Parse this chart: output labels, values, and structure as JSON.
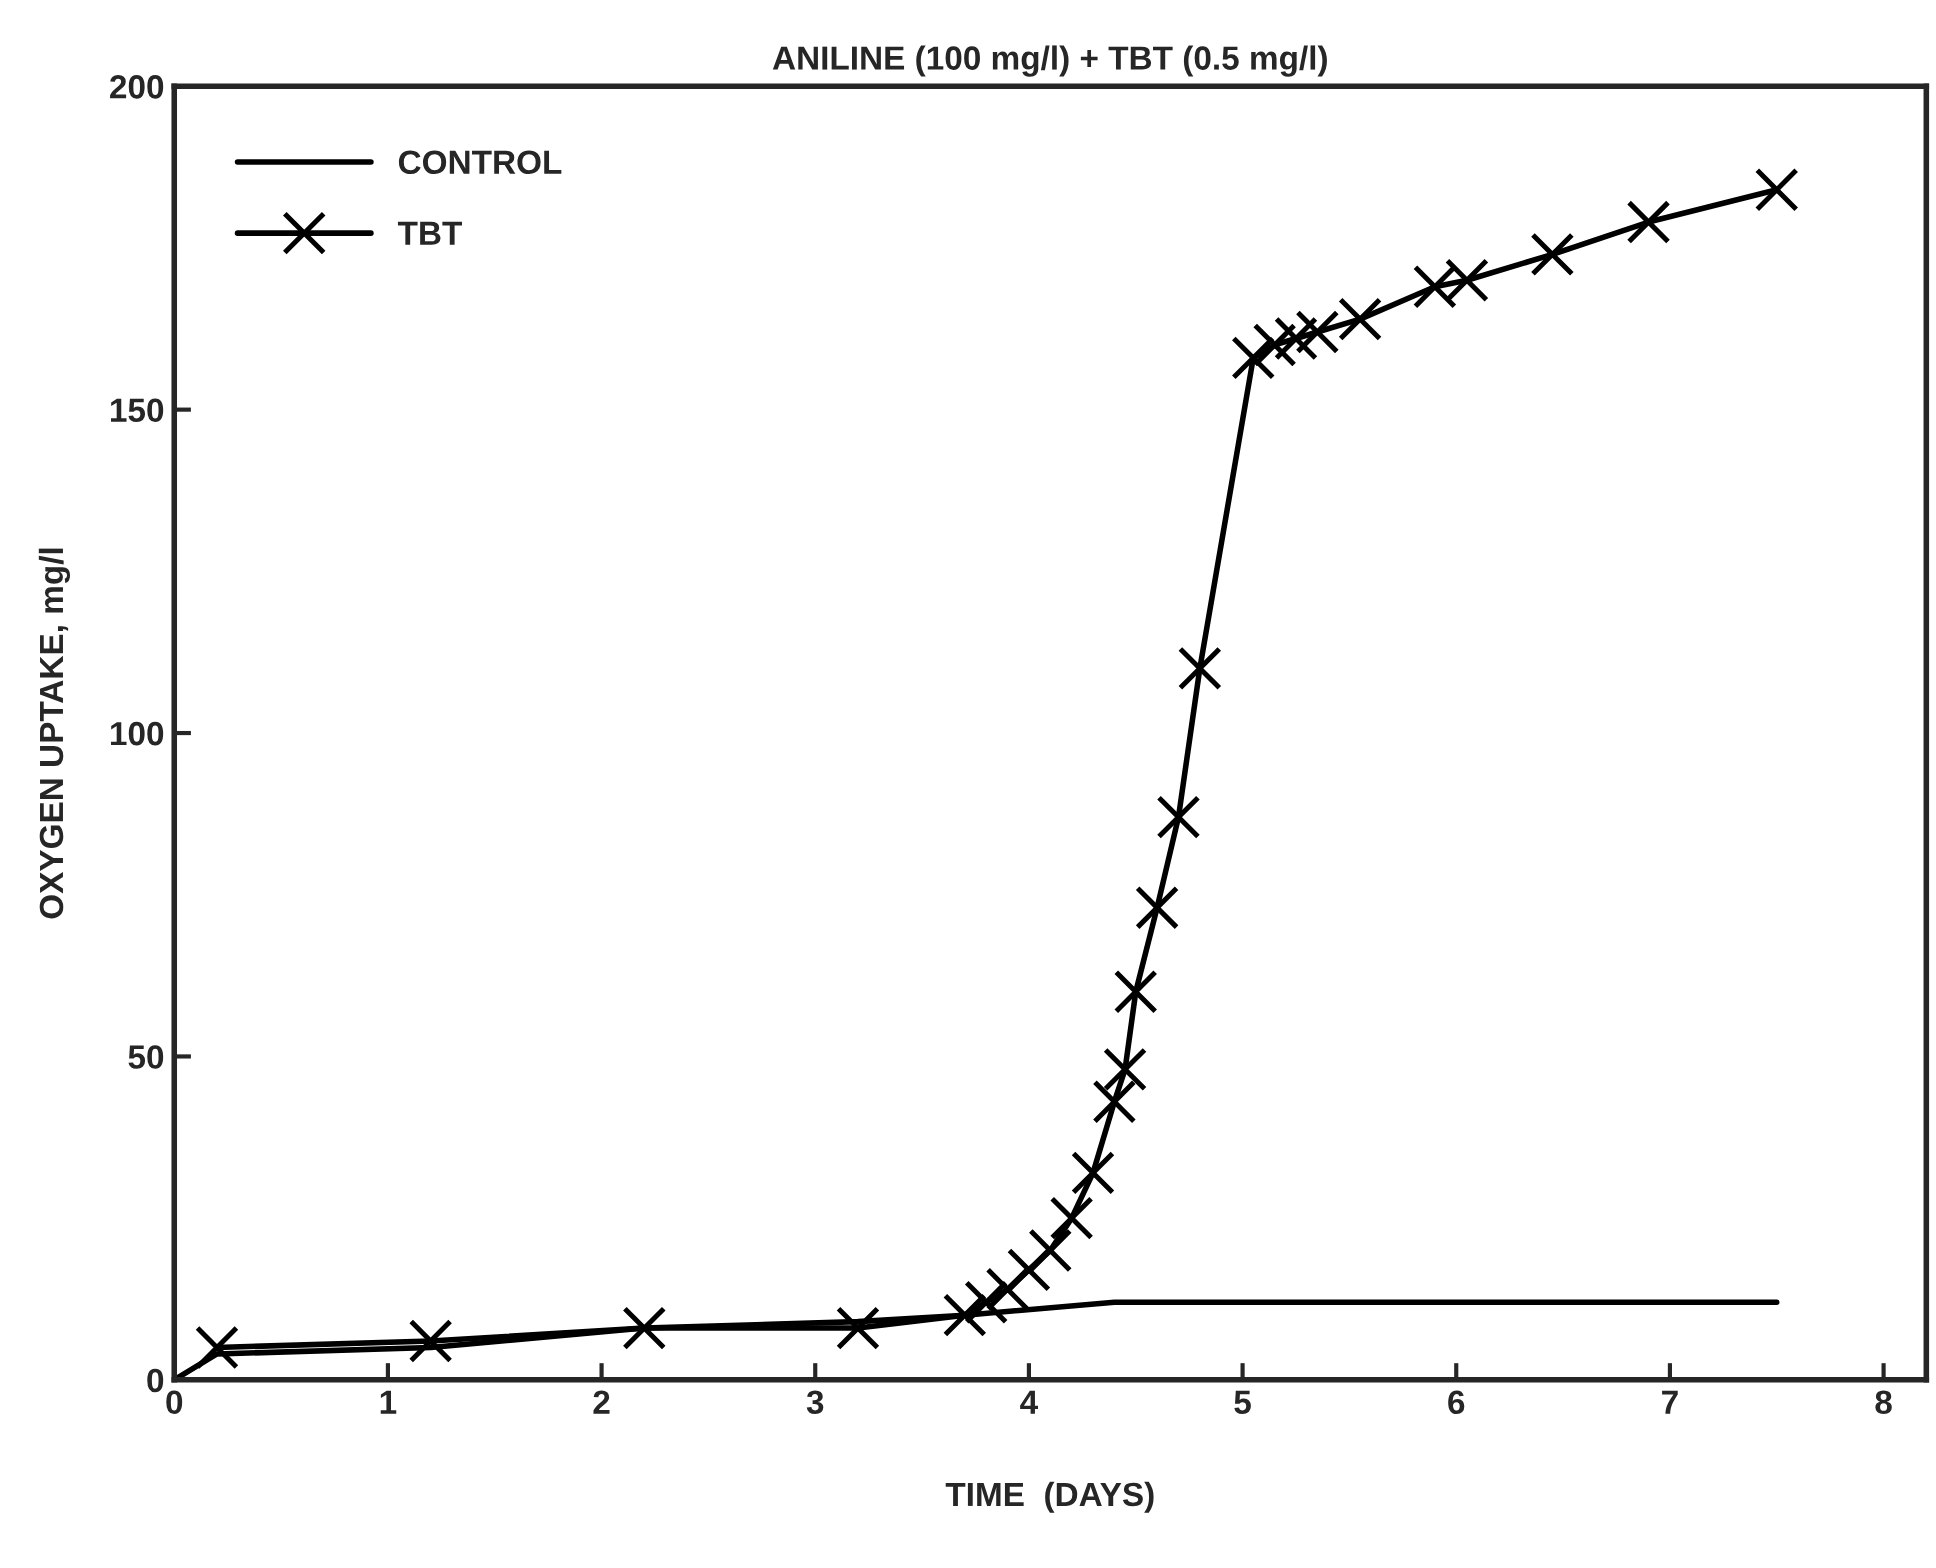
{
  "chart_data": {
    "type": "line",
    "title": "ANILINE (100 mg/l) + TBT (0.5 mg/l)",
    "xlabel": "TIME  (DAYS)",
    "ylabel": "OXYGEN UPTAKE, mg/l",
    "xlim": [
      0,
      8.2
    ],
    "ylim": [
      0,
      200
    ],
    "xticks": [
      0,
      1,
      2,
      3,
      4,
      5,
      6,
      7,
      8
    ],
    "yticks": [
      0,
      50,
      100,
      150,
      200
    ],
    "grid": false,
    "legend": "top left",
    "series": [
      {
        "name": "CONTROL",
        "color": "#000000",
        "marker": "none",
        "x": [
          0,
          0.2,
          1.2,
          2.2,
          3.2,
          3.7,
          4.4,
          7.5
        ],
        "values": [
          0,
          4,
          5,
          8,
          9,
          10,
          12,
          12
        ]
      },
      {
        "name": "TBT",
        "color": "#000000",
        "marker": "cross",
        "x": [
          0.2,
          1.2,
          2.2,
          3.2,
          3.7,
          3.8,
          3.9,
          4.0,
          4.1,
          4.2,
          4.3,
          4.4,
          4.45,
          4.5,
          4.6,
          4.7,
          4.8,
          5.05,
          5.15,
          5.25,
          5.35,
          5.55,
          5.9,
          6.05,
          6.45,
          6.9,
          7.5
        ],
        "values": [
          5,
          6,
          8,
          8,
          10,
          12,
          14,
          17,
          20,
          25,
          32,
          43,
          48,
          60,
          73,
          87,
          110,
          158,
          160,
          161,
          162,
          164,
          169,
          170,
          174,
          179,
          184
        ]
      }
    ]
  }
}
